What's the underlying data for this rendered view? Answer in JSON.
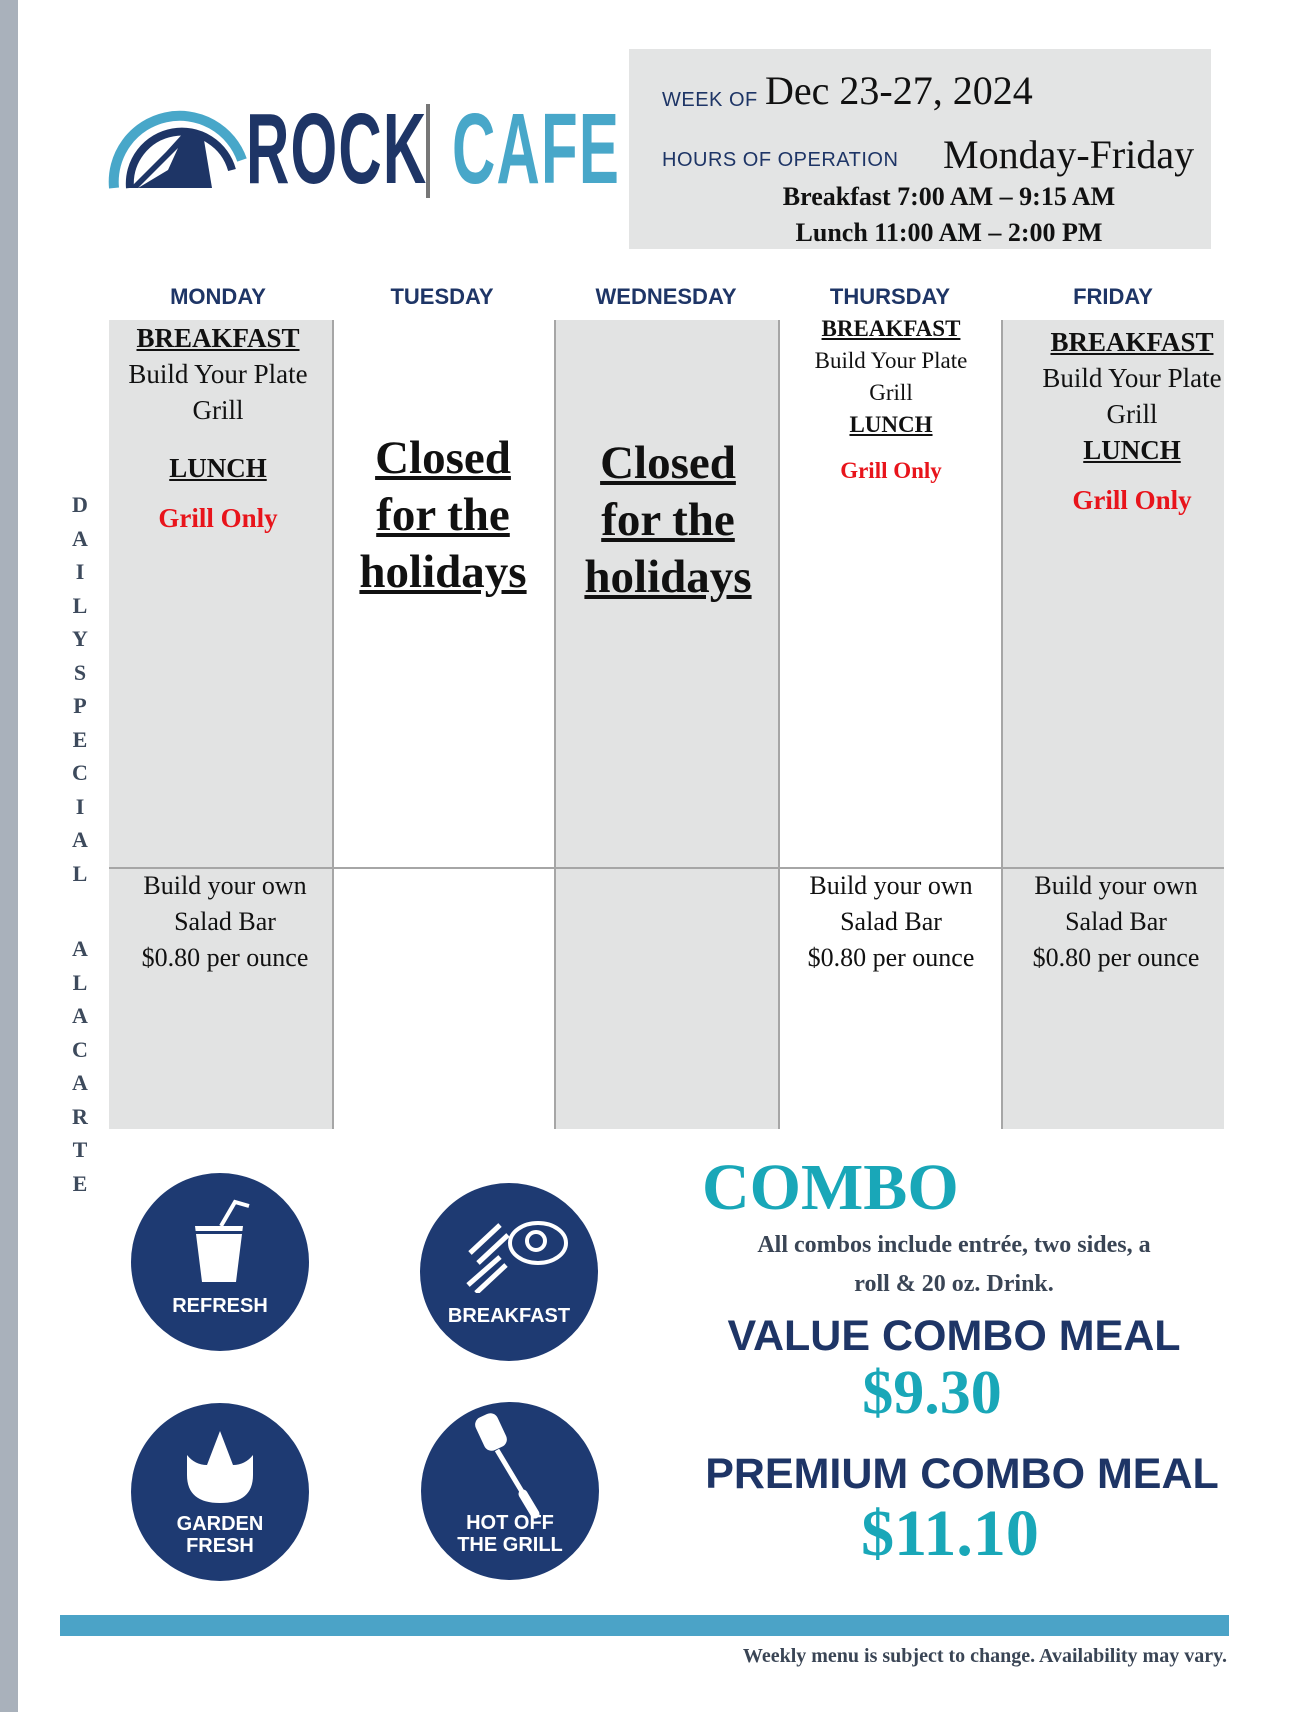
{
  "brand": {
    "name_left": "ROCK",
    "name_right": "CAFE",
    "colors": {
      "navy": "#1e3566",
      "light_blue": "#48a7c9",
      "teal": "#19a7b8",
      "red": "#e8141b"
    }
  },
  "info": {
    "week_label": "WEEK OF",
    "week_value": "Dec 23-27, 2024",
    "hours_label": "HOURS OF OPERATION",
    "hours_days": "Monday-Friday",
    "breakfast_hours": "Breakfast 7:00 AM – 9:15 AM",
    "lunch_hours": "Lunch 11:00 AM – 2:00 PM"
  },
  "days": [
    "MONDAY",
    "TUESDAY",
    "WEDNESDAY",
    "THURSDAY",
    "FRIDAY"
  ],
  "side_label": {
    "top": [
      "D",
      "A",
      "I",
      "L",
      "Y",
      "S",
      "P",
      "E",
      "C",
      "I",
      "A",
      "L"
    ],
    "bottom": [
      "A",
      "L",
      "A",
      "C",
      "A",
      "R",
      "T",
      "E"
    ]
  },
  "menu": {
    "monday": {
      "breakfast": "BREAKFAST",
      "item1": "Build Your Plate",
      "item2": "Grill",
      "lunch": "LUNCH",
      "lunch_item": "Grill Only"
    },
    "tuesday": {
      "closed": [
        "Closed",
        "for the",
        "holidays"
      ]
    },
    "wednesday": {
      "closed": [
        "Closed",
        "for the",
        "holidays"
      ]
    },
    "thursday": {
      "breakfast": "BREAKFAST",
      "item1": "Build Your Plate",
      "item2": "Grill",
      "lunch": "LUNCH",
      "lunch_item": "Grill Only"
    },
    "friday": {
      "breakfast": "BREAKFAST",
      "item1": "Build Your Plate",
      "item2": "Grill",
      "lunch": "LUNCH",
      "lunch_item": "Grill Only"
    }
  },
  "a_la_carte": {
    "line1": "Build your own",
    "line2": "Salad Bar",
    "line3": "$0.80 per ounce"
  },
  "badges": [
    {
      "icon": "cup-with-straw-icon",
      "label": "REFRESH"
    },
    {
      "icon": "bacon-and-egg-icon",
      "label": "BREAKFAST"
    },
    {
      "icon": "leaf-icon",
      "label_line1": "GARDEN",
      "label_line2": "FRESH"
    },
    {
      "icon": "spatula-icon",
      "label_line1": "HOT OFF",
      "label_line2": "THE GRILL"
    }
  ],
  "combo": {
    "title": "COMBO",
    "desc_line1": "All combos include entrée, two sides, a",
    "desc_line2": "roll & 20 oz. Drink.",
    "value_label": "VALUE COMBO MEAL",
    "value_price": "$9.30",
    "premium_label": "PREMIUM COMBO MEAL",
    "premium_price": "$11.10"
  },
  "footer": "Weekly menu is subject to change. Availability may vary."
}
